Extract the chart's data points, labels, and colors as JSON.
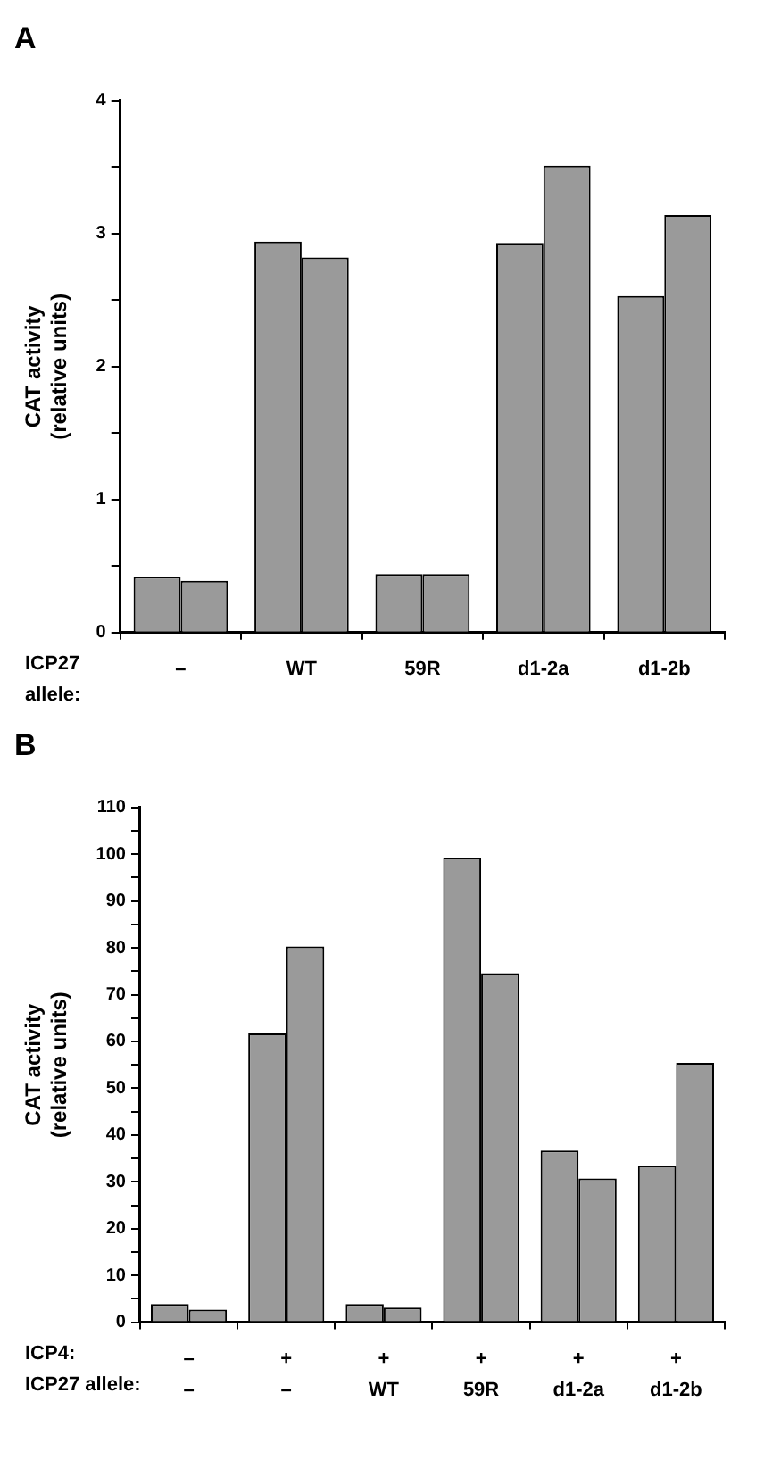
{
  "chart_data": [
    {
      "type": "bar",
      "title": "A",
      "ylabel": "CAT activity\n(relative units)",
      "categories": [
        "–",
        "WT",
        "59R",
        "d1-2a",
        "d1-2b"
      ],
      "series": [
        {
          "color": "#9a9a9a",
          "values": [
            0.42,
            2.94,
            0.44,
            2.93,
            2.53
          ]
        },
        {
          "color": "#9a9a9a",
          "values": [
            0.39,
            2.82,
            0.44,
            3.51,
            3.14
          ]
        }
      ],
      "ylim": [
        0,
        4
      ],
      "yticks": [
        0,
        {
          "value": 0.5,
          "label": null
        },
        1,
        {
          "value": 1.5,
          "label": null
        },
        2,
        {
          "value": 2.5,
          "label": null
        },
        3,
        {
          "value": 3.5,
          "label": null
        },
        4
      ],
      "annotations": [
        "ICP27\nallele:"
      ]
    },
    {
      "type": "bar",
      "title": "B",
      "ylabel": "CAT activity\n(relative units)",
      "categories": [
        "–\n–",
        "+\n–",
        "+\nWT",
        "+\n59R",
        "+\nd1-2a",
        "+\nd1-2b"
      ],
      "series": [
        {
          "color": "#9a9a9a",
          "values": [
            3.9,
            61.7,
            3.9,
            99.3,
            36.7,
            33.5
          ]
        },
        {
          "color": "#9a9a9a",
          "values": [
            2.7,
            80.3,
            3.1,
            74.6,
            30.7,
            55.4
          ]
        }
      ],
      "ylim": [
        0,
        110
      ],
      "yticks": [
        0,
        {
          "value": 5,
          "label": null
        },
        10,
        {
          "value": 15,
          "label": null
        },
        20,
        {
          "value": 25,
          "label": null
        },
        30,
        {
          "value": 35,
          "label": null
        },
        40,
        {
          "value": 45,
          "label": null
        },
        50,
        {
          "value": 55,
          "label": null
        },
        60,
        {
          "value": 65,
          "label": null
        },
        70,
        {
          "value": 75,
          "label": null
        },
        80,
        {
          "value": 85,
          "label": null
        },
        90,
        {
          "value": 95,
          "label": null
        },
        100,
        {
          "value": 105,
          "label": null
        },
        110
      ],
      "annotations": [
        "ICP4:",
        "ICP27 allele:"
      ]
    }
  ]
}
